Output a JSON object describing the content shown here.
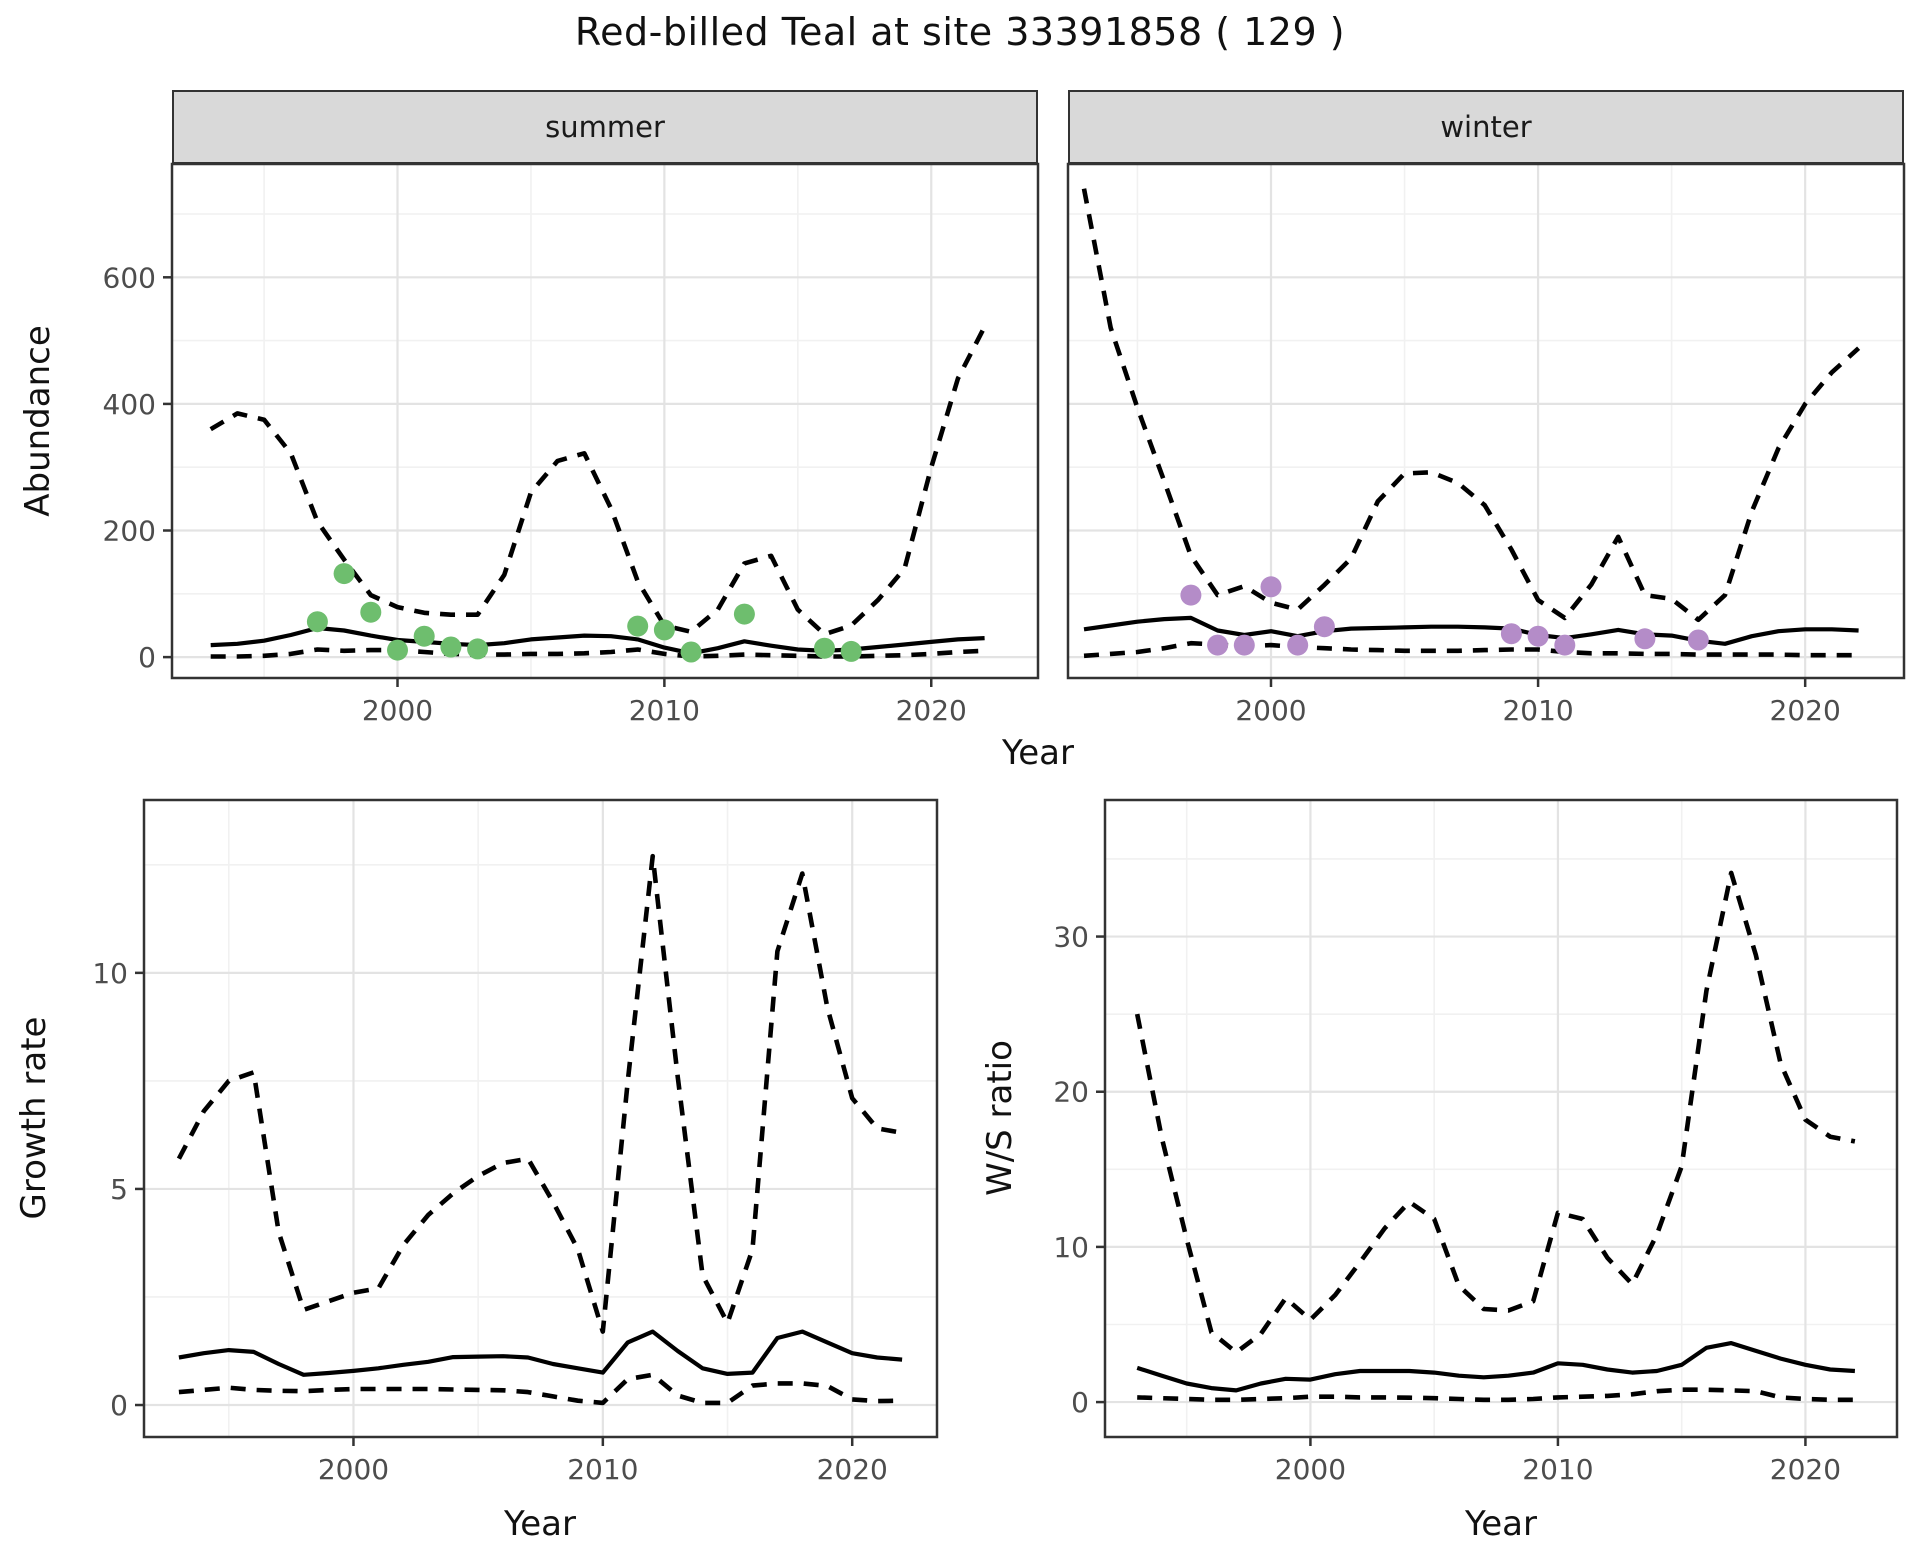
{
  "title": "Red-billed Teal at site 33391858 ( 129 )",
  "axes": {
    "abundance": "Abundance",
    "year": "Year",
    "growth": "Growth rate",
    "ws": "W/S ratio"
  },
  "facets": [
    {
      "label": "summer"
    },
    {
      "label": "winter"
    }
  ],
  "colors": {
    "summer_point": "#6ebe6e",
    "winter_point": "#b48cc8",
    "line": "#000000",
    "strip_bg": "#d9d9d9",
    "panel_border": "#333333",
    "grid_major": "#e3e3e3",
    "grid_minor": "#f1f1f1",
    "tick_label": "#4d4d4d",
    "tick_mark": "#333333"
  },
  "chart_data": [
    {
      "id": "summer",
      "type": "line",
      "facet_label": "summer",
      "xlabel": "Year",
      "ylabel": "Abundance",
      "x": [
        1993,
        1994,
        1995,
        1996,
        1997,
        1998,
        1999,
        2000,
        2001,
        2002,
        2003,
        2004,
        2005,
        2006,
        2007,
        2008,
        2009,
        2010,
        2011,
        2012,
        2013,
        2014,
        2015,
        2016,
        2017,
        2018,
        2019,
        2020,
        2021,
        2022
      ],
      "series": [
        {
          "name": "upper_quantile",
          "style": "dashed",
          "values": [
            360,
            385,
            375,
            322,
            214,
            154,
            98,
            79,
            70,
            67,
            67,
            130,
            260,
            310,
            322,
            235,
            120,
            50,
            40,
            75,
            148,
            160,
            75,
            36,
            50,
            90,
            140,
            300,
            440,
            522
          ]
        },
        {
          "name": "median",
          "style": "solid",
          "values": [
            19,
            21,
            26,
            35,
            46,
            42,
            34,
            27,
            24,
            21,
            19,
            22,
            28,
            31,
            34,
            33,
            28,
            15,
            6,
            14,
            25,
            18,
            12,
            10,
            12,
            16,
            20,
            24,
            28,
            30
          ]
        },
        {
          "name": "lower_quantile",
          "style": "dashed",
          "values": [
            1,
            1,
            2,
            5,
            12,
            10,
            11,
            11,
            8,
            5,
            4,
            4,
            5,
            5,
            6,
            8,
            12,
            5,
            1,
            2,
            4,
            3,
            2,
            1,
            1,
            2,
            3,
            5,
            8,
            10
          ]
        }
      ],
      "points": {
        "name": "summer-observations",
        "color_key": "summer_point",
        "data": [
          [
            1997,
            56
          ],
          [
            1998,
            132
          ],
          [
            1999,
            71
          ],
          [
            2000,
            11
          ],
          [
            2001,
            33
          ],
          [
            2002,
            16
          ],
          [
            2003,
            13
          ],
          [
            2009,
            49
          ],
          [
            2010,
            43
          ],
          [
            2011,
            8
          ],
          [
            2013,
            68
          ],
          [
            2016,
            14
          ],
          [
            2017,
            9
          ]
        ]
      },
      "xlim": [
        1991.55,
        2024.0
      ],
      "ylim": [
        -33,
        779
      ],
      "x_ticks": [
        2000,
        2010,
        2020
      ],
      "y_ticks": [
        0,
        200,
        400,
        600
      ],
      "x_minor": [
        1995,
        2005,
        2015
      ],
      "y_minor": [
        100,
        300,
        500,
        700
      ],
      "show_y_labels": true,
      "grid": true
    },
    {
      "id": "winter",
      "type": "line",
      "facet_label": "winter",
      "xlabel": "Year",
      "ylabel": "Abundance",
      "x": [
        1993,
        1994,
        1995,
        1996,
        1997,
        1998,
        1999,
        2000,
        2001,
        2002,
        2003,
        2004,
        2005,
        2006,
        2007,
        2008,
        2009,
        2010,
        2011,
        2012,
        2013,
        2014,
        2015,
        2016,
        2017,
        2018,
        2019,
        2020,
        2021,
        2022
      ],
      "series": [
        {
          "name": "upper_quantile",
          "style": "dashed",
          "values": [
            740,
            520,
            394,
            278,
            160,
            98,
            112,
            86,
            75,
            114,
            156,
            246,
            290,
            292,
            275,
            240,
            170,
            90,
            62,
            115,
            190,
            98,
            92,
            59,
            98,
            230,
            330,
            400,
            450,
            488
          ]
        },
        {
          "name": "median",
          "style": "solid",
          "values": [
            44,
            50,
            56,
            60,
            62,
            42,
            35,
            41,
            33,
            41,
            45,
            46,
            47,
            48,
            48,
            47,
            45,
            35,
            30,
            36,
            43,
            36,
            34,
            26,
            21,
            33,
            41,
            44,
            44,
            42
          ]
        },
        {
          "name": "lower_quantile",
          "style": "dashed",
          "values": [
            2,
            5,
            8,
            14,
            22,
            20,
            17,
            19,
            16,
            14,
            12,
            11,
            10,
            10,
            10,
            11,
            12,
            12,
            8,
            6,
            6,
            5,
            5,
            4,
            4,
            4,
            4,
            3,
            3,
            3
          ]
        }
      ],
      "points": {
        "name": "winter-observations",
        "color_key": "winter_point",
        "data": [
          [
            1997,
            98
          ],
          [
            1998,
            19
          ],
          [
            1999,
            19
          ],
          [
            2000,
            111
          ],
          [
            2001,
            19
          ],
          [
            2002,
            48
          ],
          [
            2009,
            37
          ],
          [
            2010,
            33
          ],
          [
            2011,
            19
          ],
          [
            2014,
            29
          ],
          [
            2016,
            27
          ]
        ]
      },
      "xlim": [
        1992.4,
        2023.7
      ],
      "ylim": [
        -33,
        779
      ],
      "x_ticks": [
        2000,
        2010,
        2020
      ],
      "y_ticks": [
        0,
        200,
        400,
        600
      ],
      "x_minor": [
        1995,
        2005,
        2015
      ],
      "y_minor": [
        100,
        300,
        500,
        700
      ],
      "show_y_labels": false,
      "grid": true
    },
    {
      "id": "growth",
      "type": "line",
      "facet_label": "",
      "xlabel": "Year",
      "ylabel": "Growth rate",
      "x": [
        1993,
        1994,
        1995,
        1996,
        1997,
        1998,
        1999,
        2000,
        2001,
        2002,
        2003,
        2004,
        2005,
        2006,
        2007,
        2008,
        2009,
        2010,
        2011,
        2012,
        2013,
        2014,
        2015,
        2016,
        2017,
        2018,
        2019,
        2020,
        2021,
        2022
      ],
      "series": [
        {
          "name": "upper_quantile",
          "style": "dashed",
          "values": [
            5.7,
            6.8,
            7.5,
            7.7,
            4.0,
            2.2,
            2.4,
            2.6,
            2.7,
            3.7,
            4.4,
            4.9,
            5.3,
            5.6,
            5.7,
            4.7,
            3.6,
            1.7,
            7.5,
            12.7,
            7.6,
            3.0,
            1.9,
            3.6,
            10.5,
            12.3,
            9.2,
            7.1,
            6.4,
            6.3
          ]
        },
        {
          "name": "median",
          "style": "solid",
          "values": [
            1.1,
            1.2,
            1.27,
            1.23,
            0.95,
            0.7,
            0.74,
            0.79,
            0.85,
            0.93,
            1.0,
            1.11,
            1.12,
            1.13,
            1.1,
            0.95,
            0.85,
            0.75,
            1.45,
            1.7,
            1.25,
            0.85,
            0.72,
            0.75,
            1.55,
            1.7,
            1.45,
            1.2,
            1.1,
            1.05
          ]
        },
        {
          "name": "lower_quantile",
          "style": "dashed",
          "values": [
            0.3,
            0.35,
            0.4,
            0.35,
            0.33,
            0.32,
            0.35,
            0.37,
            0.37,
            0.37,
            0.37,
            0.36,
            0.35,
            0.34,
            0.3,
            0.2,
            0.1,
            0.05,
            0.6,
            0.7,
            0.22,
            0.05,
            0.05,
            0.45,
            0.5,
            0.5,
            0.44,
            0.13,
            0.09,
            0.1
          ]
        }
      ],
      "points": null,
      "xlim": [
        1991.6,
        2023.4
      ],
      "ylim": [
        -0.74,
        14.0
      ],
      "x_ticks": [
        2000,
        2010,
        2020
      ],
      "y_ticks": [
        0,
        5,
        10
      ],
      "x_minor": [
        1995,
        2005,
        2015
      ],
      "y_minor": [
        2.5,
        7.5,
        12.5
      ],
      "show_y_labels": true,
      "grid": true
    },
    {
      "id": "ws",
      "type": "line",
      "facet_label": "",
      "xlabel": "Year",
      "ylabel": "W/S ratio",
      "x": [
        1993,
        1994,
        1995,
        1996,
        1997,
        1998,
        1999,
        2000,
        2001,
        2002,
        2003,
        2004,
        2005,
        2006,
        2007,
        2008,
        2009,
        2010,
        2011,
        2012,
        2013,
        2014,
        2015,
        2016,
        2017,
        2018,
        2019,
        2020,
        2021,
        2022
      ],
      "series": [
        {
          "name": "upper_quantile",
          "style": "dashed",
          "values": [
            25,
            17,
            10.5,
            4.5,
            3.2,
            4.4,
            6.7,
            5.3,
            6.9,
            9.0,
            11.2,
            12.9,
            11.8,
            7.5,
            6.0,
            5.9,
            6.5,
            12.2,
            11.8,
            9.3,
            7.6,
            10.8,
            15.2,
            26.5,
            34.1,
            28.8,
            21.8,
            18.2,
            17.1,
            16.8
          ]
        },
        {
          "name": "median",
          "style": "solid",
          "values": [
            2.2,
            1.7,
            1.2,
            0.9,
            0.75,
            1.2,
            1.5,
            1.45,
            1.8,
            2.0,
            2.0,
            2.0,
            1.9,
            1.7,
            1.6,
            1.7,
            1.9,
            2.5,
            2.4,
            2.1,
            1.9,
            2.0,
            2.4,
            3.5,
            3.8,
            3.3,
            2.8,
            2.4,
            2.1,
            2.0
          ]
        },
        {
          "name": "lower_quantile",
          "style": "dashed",
          "values": [
            0.3,
            0.25,
            0.2,
            0.15,
            0.15,
            0.2,
            0.25,
            0.35,
            0.35,
            0.3,
            0.3,
            0.28,
            0.25,
            0.2,
            0.15,
            0.15,
            0.2,
            0.3,
            0.35,
            0.4,
            0.5,
            0.7,
            0.8,
            0.8,
            0.75,
            0.7,
            0.3,
            0.2,
            0.15,
            0.15
          ]
        }
      ],
      "points": null,
      "xlim": [
        1991.7,
        2023.7
      ],
      "ylim": [
        -2.25,
        38.8
      ],
      "x_ticks": [
        2000,
        2010,
        2020
      ],
      "y_ticks": [
        0,
        10,
        20,
        30
      ],
      "x_minor": [
        1995,
        2005,
        2015
      ],
      "y_minor": [
        5,
        15,
        25,
        35
      ],
      "show_y_labels": true,
      "grid": true
    }
  ]
}
